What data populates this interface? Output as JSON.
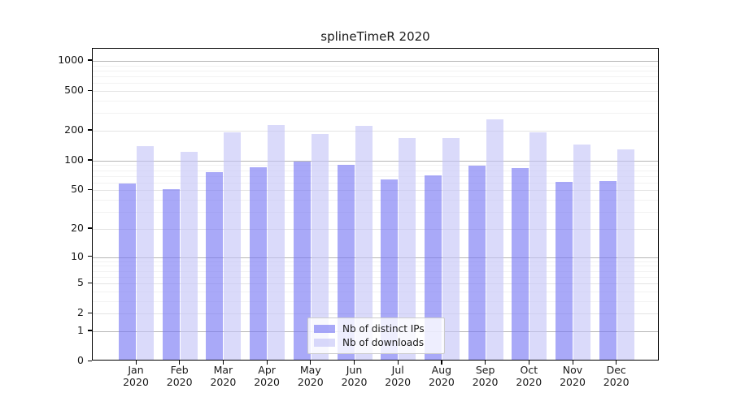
{
  "figure": {
    "title": "splineTimeR 2020",
    "background": "#ffffff"
  },
  "chart_data": {
    "type": "bar",
    "title": "splineTimeR 2020",
    "categories": [
      "Jan",
      "Feb",
      "Mar",
      "Apr",
      "May",
      "Jun",
      "Jul",
      "Aug",
      "Sep",
      "Oct",
      "Nov",
      "Dec"
    ],
    "category_year": "2020",
    "series": [
      {
        "name": "Nb of distinct IPs",
        "color": "rgba(116,116,243,0.62)",
        "values": [
          56,
          49,
          74,
          82,
          94,
          87,
          62,
          68,
          86,
          81,
          59,
          60
        ]
      },
      {
        "name": "Nb of downloads",
        "color": "rgba(196,196,247,0.62)",
        "values": [
          135,
          119,
          187,
          221,
          178,
          217,
          164,
          164,
          252,
          185,
          139,
          125
        ]
      }
    ],
    "xlabel": "",
    "ylabel": "",
    "yscale": "log10(value+1)",
    "yticks": [
      0,
      1,
      2,
      5,
      10,
      20,
      50,
      100,
      200,
      500,
      1000
    ],
    "major_gridlines": [
      1,
      10,
      100,
      1000
    ],
    "minor_gridline_subs": [
      2,
      3,
      4,
      5,
      6,
      7,
      8,
      9
    ],
    "ylim": [
      0,
      1320
    ],
    "grid": true,
    "legend_position": "lower center"
  },
  "colors": {
    "major_grid": "#b6b6b6",
    "minor_grid_labeled": "#e4e4e4",
    "minor_grid_unlabeled": "#f2f2f2",
    "axis": "#000000",
    "text": "#1a1a1a",
    "legend_border": "#cccccc",
    "legend_background": "rgba(255,255,255,0.8)"
  }
}
